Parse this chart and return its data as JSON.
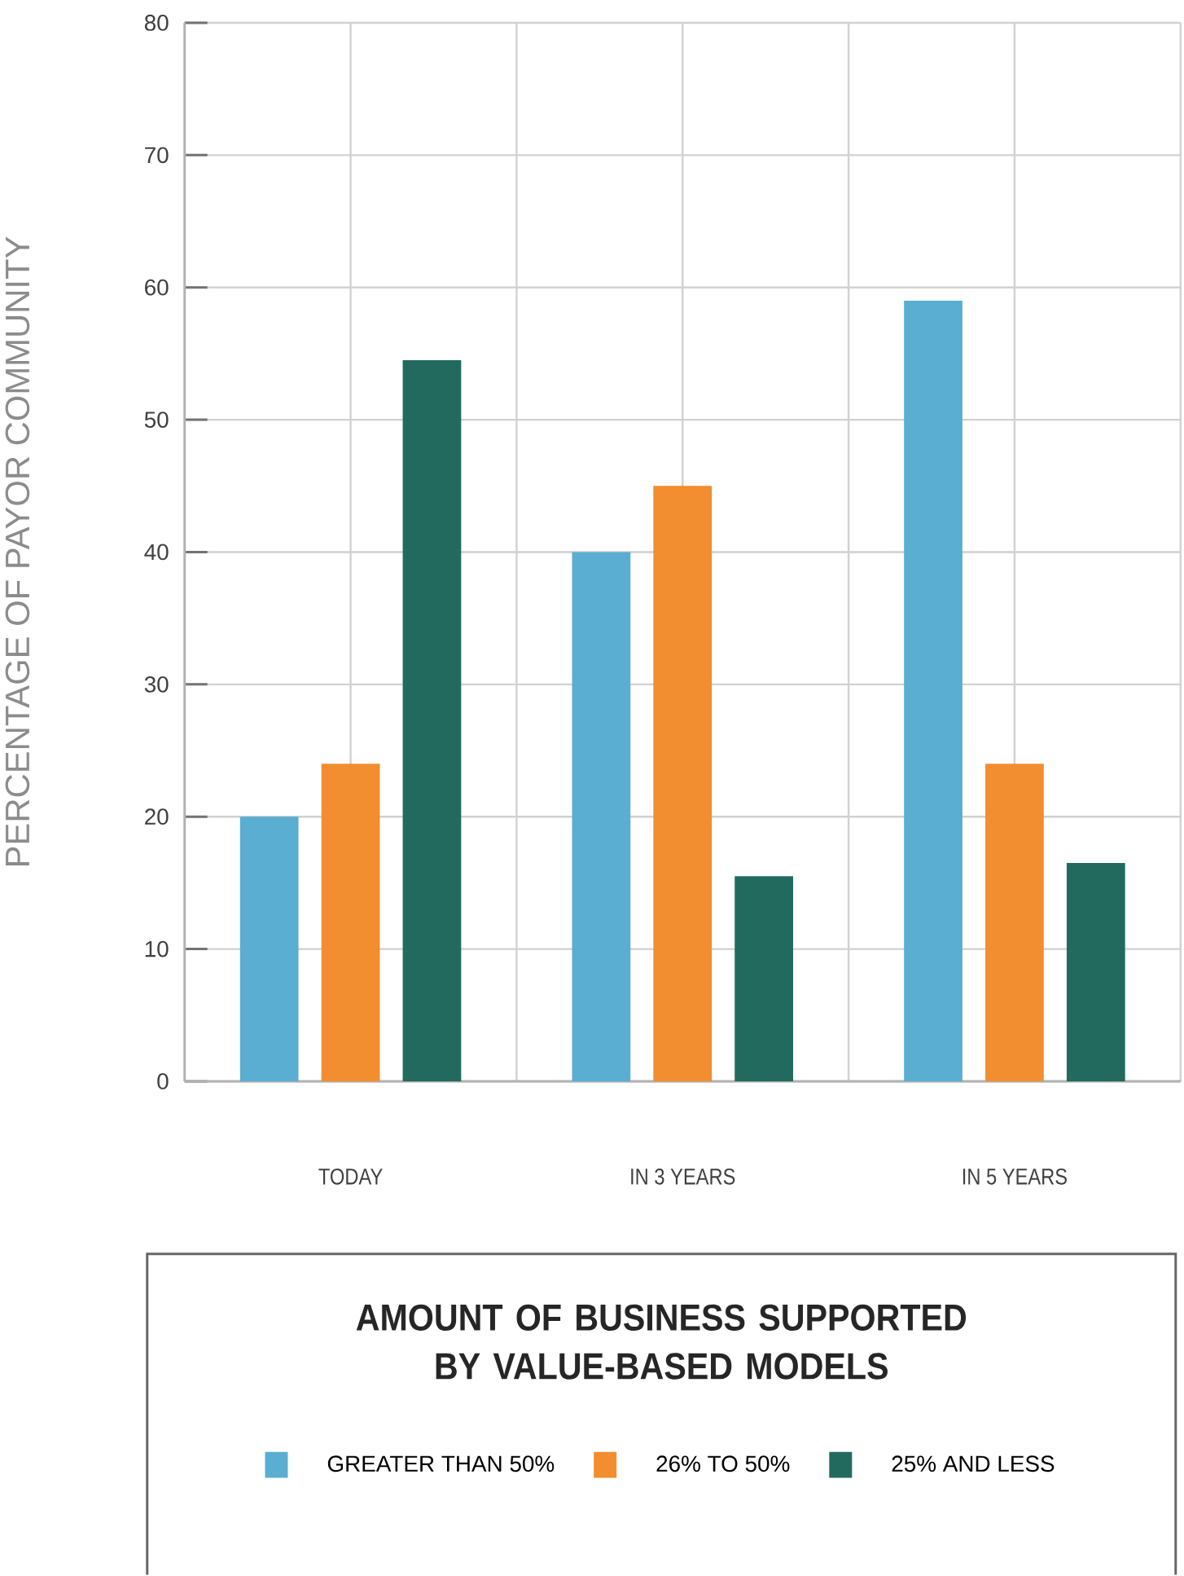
{
  "chart_data": {
    "type": "bar",
    "ylabel": "PERCENTAGE OF PAYOR COMMUNITY",
    "legend_title": "AMOUNT OF BUSINESS SUPPORTED BY VALUE-BASED MODELS",
    "categories": [
      "TODAY",
      "IN 3 YEARS",
      "IN 5 YEARS"
    ],
    "series": [
      {
        "name": "GREATER THAN 50%",
        "color": "#59aed1",
        "values": [
          20,
          40,
          59
        ]
      },
      {
        "name": "26% TO 50%",
        "color": "#f28d30",
        "values": [
          24,
          45,
          24
        ]
      },
      {
        "name": "25% AND LESS",
        "color": "#226a5e",
        "values": [
          54.5,
          15.5,
          16.5
        ]
      }
    ],
    "ylim": [
      0,
      80
    ],
    "yticks": [
      0,
      10,
      20,
      30,
      40,
      50,
      60,
      70,
      80
    ],
    "grid": true,
    "legend": "bottom"
  }
}
